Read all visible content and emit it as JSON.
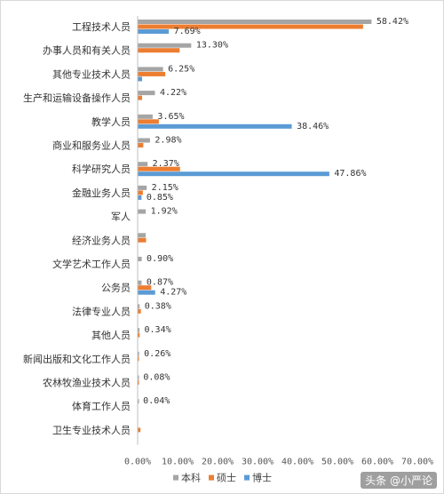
{
  "chart_data": {
    "type": "bar",
    "orientation": "horizontal",
    "categories": [
      "工程技术人员",
      "办事人员和有关人员",
      "其他专业技术人员",
      "生产和运输设备操作人员",
      "教学人员",
      "商业和服务业人员",
      "科学研究人员",
      "金融业务人员",
      "军人",
      "经济业务人员",
      "文学艺术工作人员",
      "公务员",
      "法律专业人员",
      "其他人员",
      "新闻出版和文化工作人员",
      "农林牧渔业技术人员",
      "体育工作人员",
      "卫生专业技术人员"
    ],
    "series": [
      {
        "name": "本科",
        "color": "#a5a5a5",
        "values": [
          58.42,
          13.3,
          6.25,
          4.22,
          3.65,
          2.98,
          2.37,
          2.15,
          1.92,
          1.9,
          0.9,
          0.87,
          0.38,
          0.34,
          0.26,
          0.08,
          0.04,
          0.0
        ]
      },
      {
        "name": "硕士",
        "color": "#ed7d31",
        "values": [
          56.3,
          10.4,
          6.8,
          1.0,
          5.2,
          1.3,
          10.5,
          1.2,
          0.0,
          2.0,
          0.0,
          3.3,
          0.7,
          0.4,
          0.2,
          0.1,
          0.0,
          0.6
        ]
      },
      {
        "name": "博士",
        "color": "#5b9bd5",
        "values": [
          7.69,
          0.0,
          1.0,
          0.0,
          38.46,
          0.0,
          47.86,
          0.85,
          0.0,
          0.0,
          0.0,
          4.27,
          0.0,
          0.0,
          0.0,
          0.0,
          0.0,
          0.0
        ]
      }
    ],
    "data_labels": [
      {
        "category": "工程技术人员",
        "series": "本科",
        "text": "58.42%"
      },
      {
        "category": "工程技术人员",
        "series": "博士",
        "text": "7.69%"
      },
      {
        "category": "办事人员和有关人员",
        "series": "本科",
        "text": "13.30%"
      },
      {
        "category": "其他专业技术人员",
        "series": "本科",
        "text": "6.25%"
      },
      {
        "category": "生产和运输设备操作人员",
        "series": "本科",
        "text": "4.22%"
      },
      {
        "category": "教学人员",
        "series": "本科",
        "text": "3.65%"
      },
      {
        "category": "教学人员",
        "series": "博士",
        "text": "38.46%"
      },
      {
        "category": "商业和服务业人员",
        "series": "本科",
        "text": "2.98%"
      },
      {
        "category": "科学研究人员",
        "series": "本科",
        "text": "2.37%"
      },
      {
        "category": "科学研究人员",
        "series": "博士",
        "text": "47.86%"
      },
      {
        "category": "金融业务人员",
        "series": "本科",
        "text": "2.15%"
      },
      {
        "category": "金融业务人员",
        "series": "博士",
        "text": "0.85%"
      },
      {
        "category": "军人",
        "series": "本科",
        "text": "1.92%"
      },
      {
        "category": "文学艺术工作人员",
        "series": "本科",
        "text": "0.90%"
      },
      {
        "category": "公务员",
        "series": "本科",
        "text": "0.87%"
      },
      {
        "category": "公务员",
        "series": "博士",
        "text": "4.27%"
      },
      {
        "category": "法律专业人员",
        "series": "本科",
        "text": "0.38%"
      },
      {
        "category": "其他人员",
        "series": "本科",
        "text": "0.34%"
      },
      {
        "category": "新闻出版和文化工作人员",
        "series": "本科",
        "text": "0.26%"
      },
      {
        "category": "农林牧渔业技术人员",
        "series": "本科",
        "text": "0.08%"
      },
      {
        "category": "体育工作人员",
        "series": "本科",
        "text": "0.04%"
      }
    ],
    "x_ticks": [
      "0.00%",
      "10.00%",
      "20.00%",
      "30.00%",
      "40.00%",
      "50.00%",
      "60.00%",
      "70.00%"
    ],
    "xlim": [
      0,
      70
    ],
    "title": "",
    "xlabel": "",
    "ylabel": "",
    "legend_position": "bottom",
    "grid": false
  },
  "watermark": "头条 @小严论"
}
